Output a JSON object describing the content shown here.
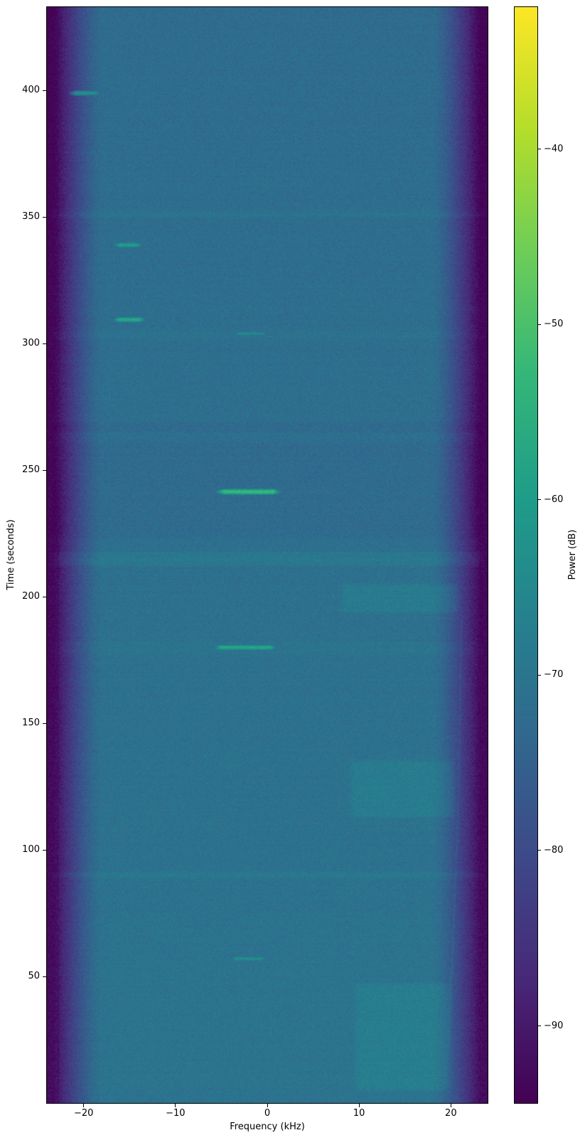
{
  "chart_data": {
    "type": "heatmap",
    "variant": "spectrogram",
    "title": "",
    "xlabel": "Frequency (kHz)",
    "ylabel": "Time (seconds)",
    "colorbar_label": "Power (dB)",
    "colormap": "viridis",
    "xlim": [
      -24,
      24
    ],
    "ylim": [
      0,
      433
    ],
    "clim": [
      -94.4,
      -31.9
    ],
    "x_ticks": [
      -20,
      -10,
      0,
      10,
      20
    ],
    "x_tick_labels": [
      "−20",
      "−10",
      "0",
      "10",
      "20"
    ],
    "y_ticks": [
      50,
      100,
      150,
      200,
      250,
      300,
      350,
      400
    ],
    "y_tick_labels": [
      "50",
      "100",
      "150",
      "200",
      "250",
      "300",
      "350",
      "400"
    ],
    "colorbar_ticks": [
      -40,
      -50,
      -60,
      -70,
      -80,
      -90
    ],
    "colorbar_tick_labels": [
      "−40",
      "−50",
      "−60",
      "−70",
      "−80",
      "−90"
    ],
    "grid": false,
    "legend": "none (colorbar on right)",
    "background": {
      "noise_floor_db": -72.4,
      "bottom_brightening_db": 1.9,
      "speckle_noise_db": 4.2,
      "band_edge": {
        "start_khz": 18.0,
        "end_khz": 23.2,
        "attenuation_db": 22,
        "exponent": 1.35
      }
    },
    "streaks": [
      {
        "time_s": 399,
        "freq_khz": [
          -20.7,
          -18.7
        ],
        "power_db": -63
      },
      {
        "time_s": 339,
        "freq_khz": [
          -16.1,
          -14.2
        ],
        "power_db": -60
      },
      {
        "time_s": 309.5,
        "freq_khz": [
          -16.1,
          -14.0
        ],
        "power_db": -57
      },
      {
        "time_s": 304,
        "freq_khz": [
          -3.1,
          -0.5
        ],
        "power_db": -65
      },
      {
        "time_s": 241.5,
        "freq_khz": [
          -4.7,
          0.6
        ],
        "power_db": -52.5
      },
      {
        "time_s": 180,
        "freq_khz": [
          -5.1,
          0.3
        ],
        "power_db": -57.5
      },
      {
        "time_s": 57,
        "freq_khz": [
          -3.4,
          -0.6
        ],
        "power_db": -63.5
      }
    ],
    "bands": [
      {
        "t": [
          211.5,
          218.5
        ],
        "f": [
          -24,
          24
        ],
        "dp_db": 2.2
      },
      {
        "t": [
          222,
          262
        ],
        "f": [
          -24,
          24
        ],
        "dp_db": -1.0
      },
      {
        "t": [
          264,
          270
        ],
        "f": [
          -24,
          24
        ],
        "dp_db": -1.3
      },
      {
        "t": [
          349,
          353
        ],
        "f": [
          -24,
          24
        ],
        "dp_db": 1.5
      },
      {
        "t": [
          301,
          306
        ],
        "f": [
          -24,
          24
        ],
        "dp_db": 1.0
      },
      {
        "t": [
          176,
          183
        ],
        "f": [
          -24,
          24
        ],
        "dp_db": 1.0
      },
      {
        "t": [
          88,
          92
        ],
        "f": [
          -24,
          24
        ],
        "dp_db": 1.6
      },
      {
        "t": [
          193,
          206
        ],
        "f": [
          7.5,
          21.5
        ],
        "dp_db": 2.8
      },
      {
        "t": [
          112,
          136
        ],
        "f": [
          8.5,
          21.0
        ],
        "dp_db": 2.8
      },
      {
        "t": [
          4,
          48
        ],
        "f": [
          9.0,
          20.5
        ],
        "dp_db": 2.8
      }
    ],
    "drift_line": {
      "points_t_f_p": [
        [
          197,
          21.15,
          -79
        ],
        [
          120,
          20.85,
          -78
        ],
        [
          60,
          20.2,
          -74
        ],
        [
          15,
          19.6,
          -70
        ]
      ],
      "width_khz": 0.15
    },
    "dark_line": {
      "freq_khz": -22.8,
      "power_db": -93,
      "width_khz": 0.12
    }
  }
}
